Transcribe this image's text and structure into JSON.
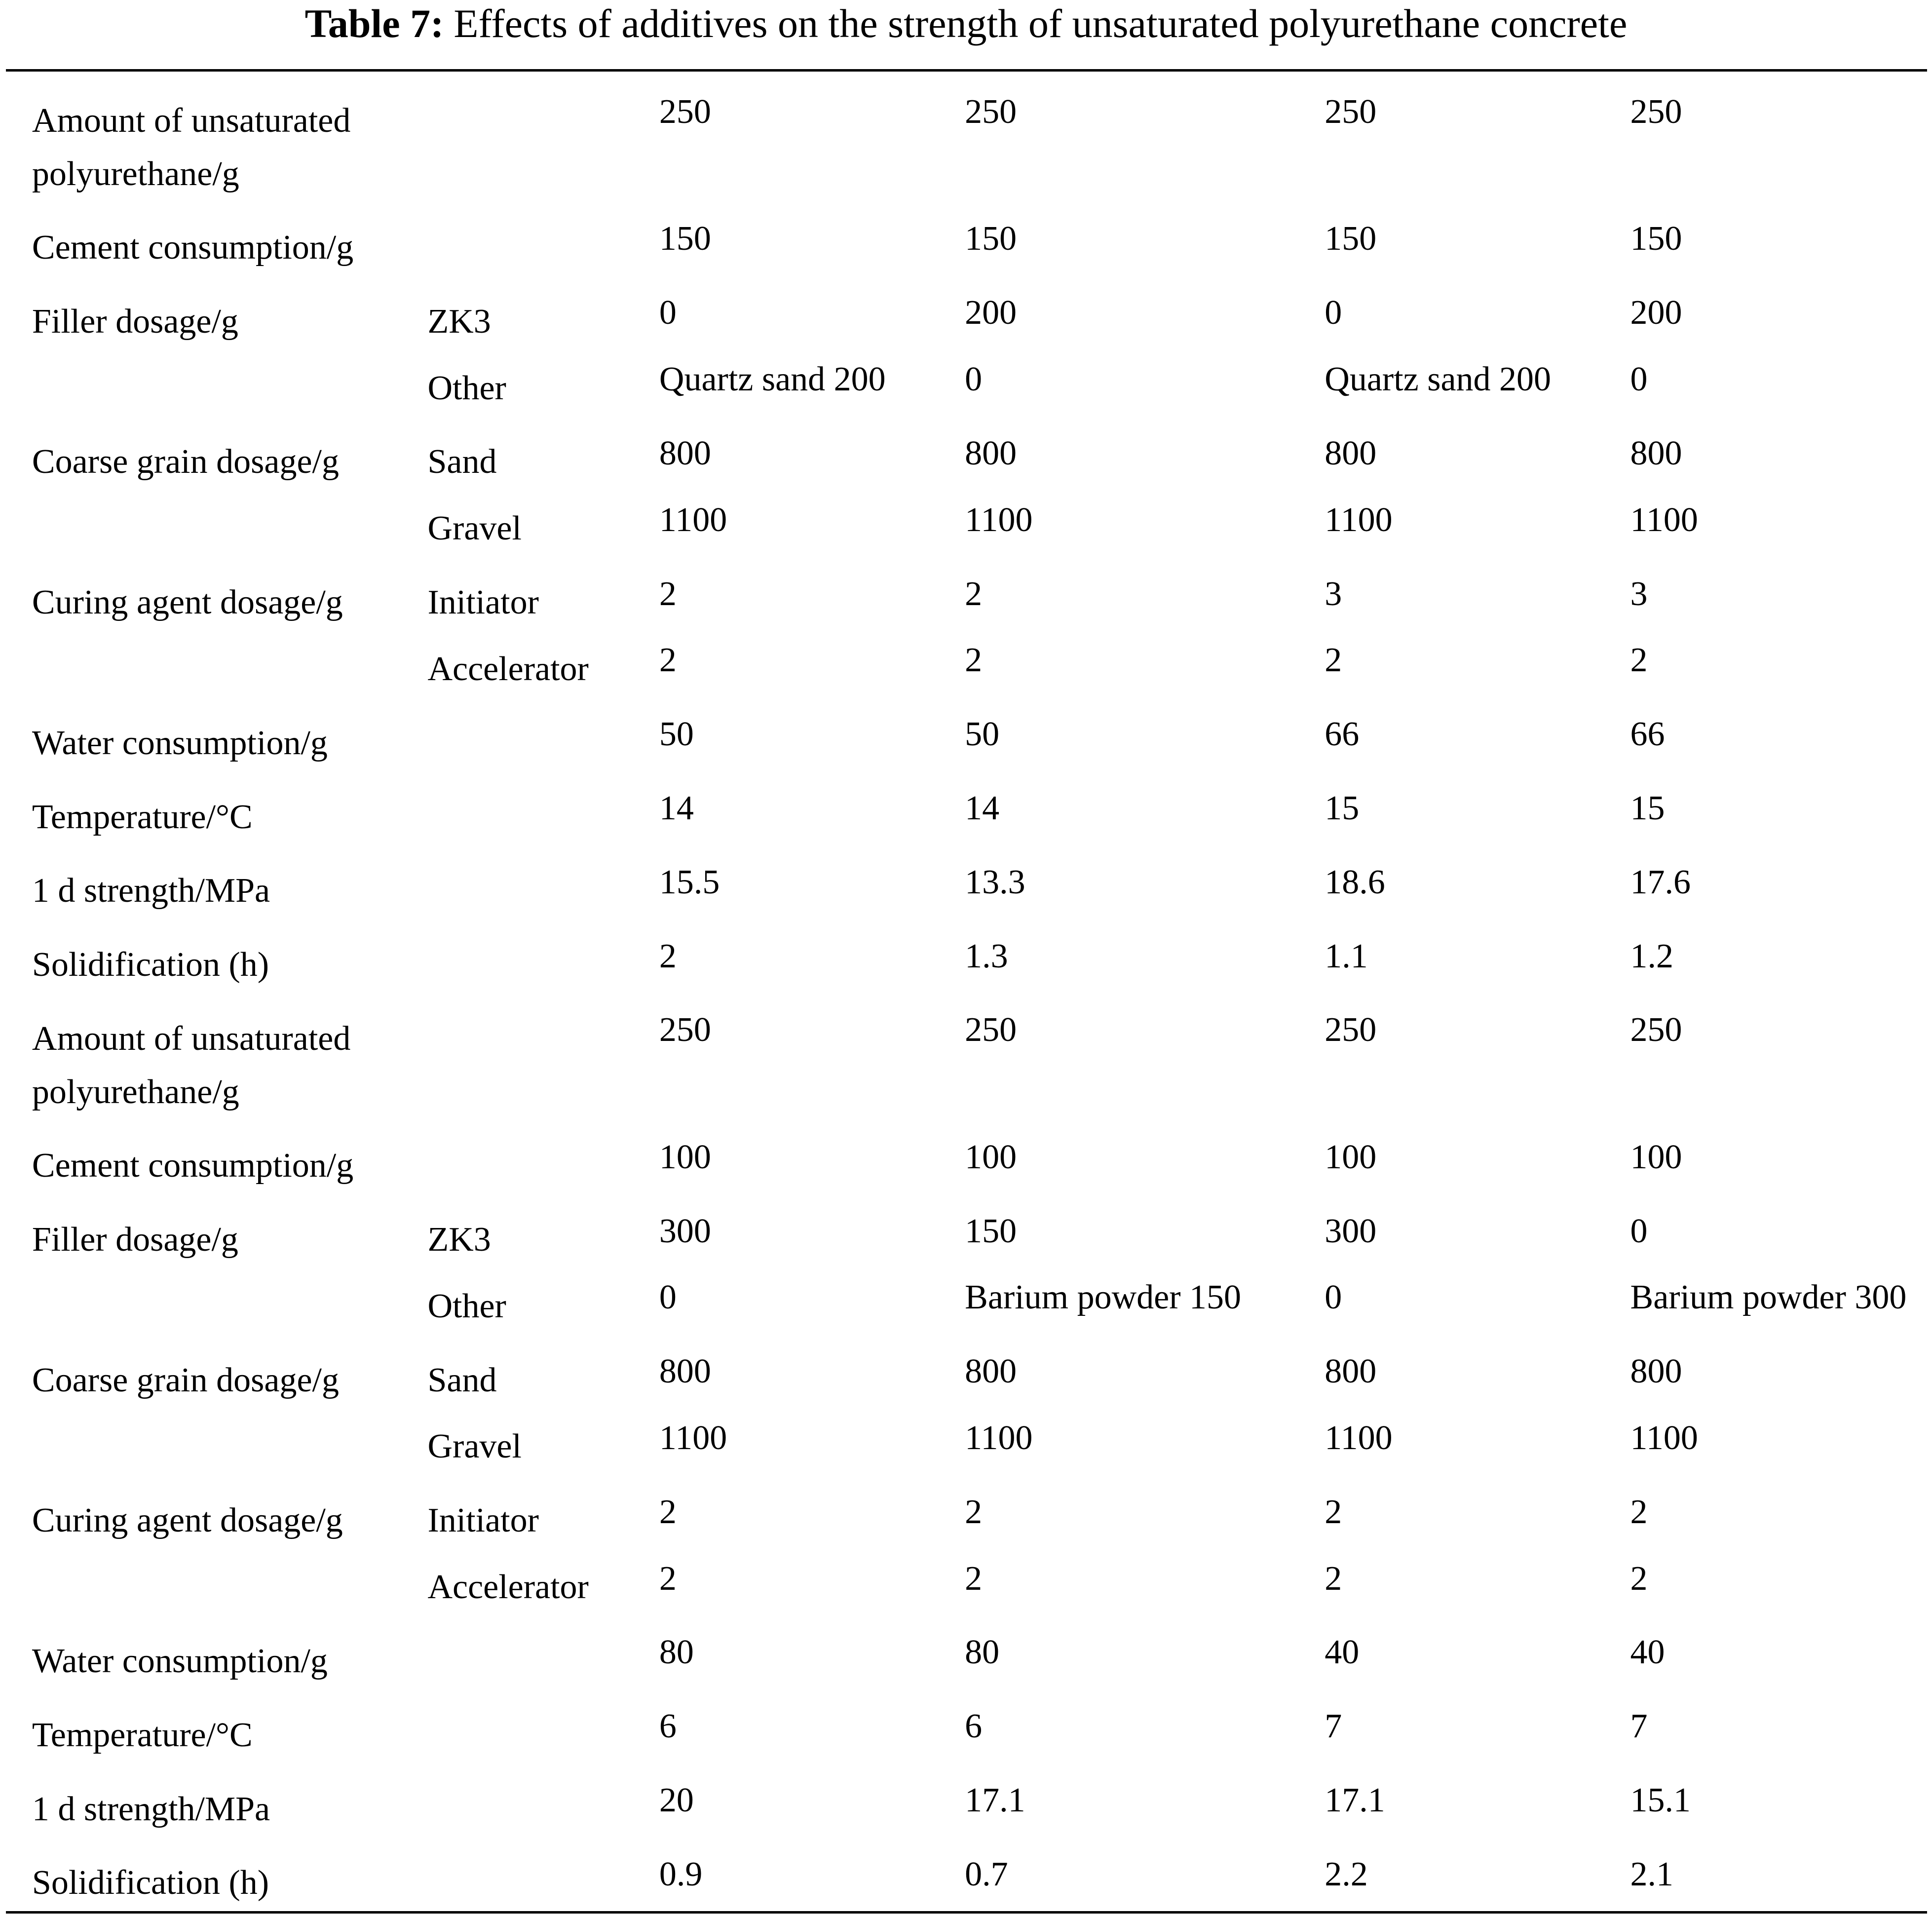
{
  "table": {
    "title_label": "Table 7:",
    "title": "Effects of additives on the strength of unsaturated polyurethane concrete",
    "rows": [
      {
        "label": "Amount of unsaturated polyurethane/g",
        "values": [
          "250",
          "250",
          "250",
          "250"
        ]
      },
      {
        "label": "Cement consumption/g",
        "values": [
          "150",
          "150",
          "150",
          "150"
        ]
      },
      {
        "label": "Filler dosage/g",
        "sub": "ZK3",
        "values": [
          "0",
          "200",
          "0",
          "200"
        ]
      },
      {
        "sub": "Other",
        "values": [
          "Quartz sand 200",
          "0",
          "Quartz sand 200",
          "0"
        ]
      },
      {
        "label": "Coarse grain dosage/g",
        "sub": "Sand",
        "values": [
          "800",
          "800",
          "800",
          "800"
        ]
      },
      {
        "sub": "Gravel",
        "values": [
          "1100",
          "1100",
          "1100",
          "1100"
        ]
      },
      {
        "label": "Curing agent dosage/g",
        "sub": "Initiator",
        "values": [
          "2",
          "2",
          "3",
          "3"
        ]
      },
      {
        "sub": "Accelerator",
        "values": [
          "2",
          "2",
          "2",
          "2"
        ]
      },
      {
        "label": "Water consumption/g",
        "values": [
          "50",
          "50",
          "66",
          "66"
        ]
      },
      {
        "label": "Temperature/°C",
        "values": [
          "14",
          "14",
          "15",
          "15"
        ]
      },
      {
        "label": "1 d strength/MPa",
        "values": [
          "15.5",
          "13.3",
          "18.6",
          "17.6"
        ]
      },
      {
        "label": "Solidification (h)",
        "values": [
          "2",
          "1.3",
          "1.1",
          "1.2"
        ]
      },
      {
        "label": "Amount of unsaturated polyurethane/g",
        "values": [
          "250",
          "250",
          "250",
          "250"
        ]
      },
      {
        "label": "Cement consumption/g",
        "values": [
          "100",
          "100",
          "100",
          "100"
        ]
      },
      {
        "label": "Filler dosage/g",
        "sub": "ZK3",
        "values": [
          "300",
          "150",
          "300",
          "0"
        ]
      },
      {
        "sub": "Other",
        "values": [
          "0",
          "Barium powder 150",
          "0",
          "Barium powder 300"
        ]
      },
      {
        "label": "Coarse grain dosage/g",
        "sub": "Sand",
        "values": [
          "800",
          "800",
          "800",
          "800"
        ]
      },
      {
        "sub": "Gravel",
        "values": [
          "1100",
          "1100",
          "1100",
          "1100"
        ]
      },
      {
        "label": "Curing agent dosage/g",
        "sub": "Initiator",
        "values": [
          "2",
          "2",
          "2",
          "2"
        ]
      },
      {
        "sub": "Accelerator",
        "values": [
          "2",
          "2",
          "2",
          "2"
        ]
      },
      {
        "label": "Water consumption/g",
        "values": [
          "80",
          "80",
          "40",
          "40"
        ]
      },
      {
        "label": "Temperature/°C",
        "values": [
          "6",
          "6",
          "7",
          "7"
        ]
      },
      {
        "label": "1 d strength/MPa",
        "values": [
          "20",
          "17.1",
          "17.1",
          "15.1"
        ]
      },
      {
        "label": "Solidification (h)",
        "values": [
          "0.9",
          "0.7",
          "2.2",
          "2.1"
        ]
      }
    ]
  }
}
